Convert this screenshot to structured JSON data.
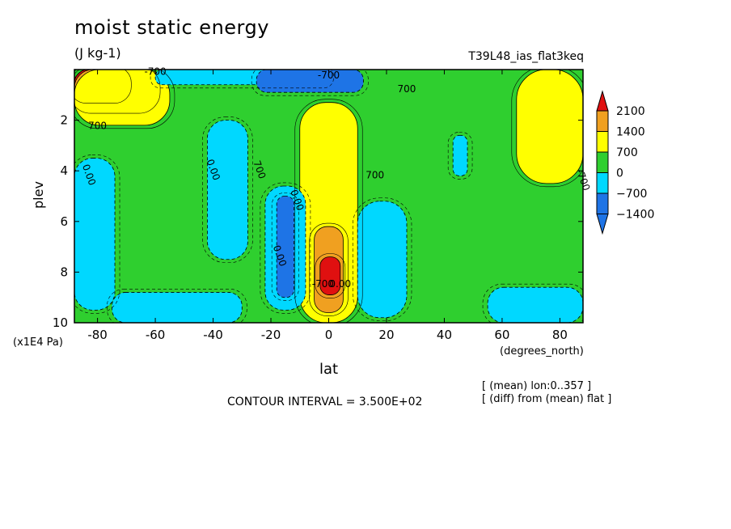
{
  "title": "moist static energy",
  "units": "(J kg-1)",
  "experiment_label": "T39L48_ias_flat3keq",
  "axis": {
    "xlabel": "lat",
    "xunits": "(degrees_north)",
    "ylabel": "plev",
    "yunits": "(x1E4 Pa)"
  },
  "contour_interval_text": "CONTOUR INTERVAL = 3.500E+02",
  "notes": [
    "[ (mean) lon:0..357 ]",
    "[ (diff) from (mean) flat ]"
  ],
  "colors": {
    "c_neg1400": "#1e74e6",
    "c_neg700": "#00d8ff",
    "c_0": "#2fcf2f",
    "c_700": "#ffff00",
    "c_1400": "#f0a020",
    "c_2100": "#e01010"
  },
  "chart_data": {
    "type": "heatmap",
    "subtype": "filled contour (latitude-pressure cross-section)",
    "title": "moist static energy",
    "units": "J kg-1",
    "x": {
      "label": "lat",
      "units": "degrees_north",
      "range": [
        -88,
        88
      ],
      "ticks": [
        -80,
        -60,
        -40,
        -20,
        0,
        20,
        40,
        60,
        80
      ]
    },
    "y": {
      "label": "plev",
      "units": "x1E4 Pa",
      "range": [
        0,
        10
      ],
      "inverted": true,
      "ticks": [
        2,
        4,
        6,
        8,
        10
      ]
    },
    "contour_interval": 350,
    "colorbar": {
      "levels": [
        -1400,
        -700,
        0,
        700,
        1400,
        2100
      ],
      "colors": [
        "#1e74e6",
        "#00d8ff",
        "#2fcf2f",
        "#ffff00",
        "#f0a020",
        "#e01010"
      ],
      "extend": "both"
    },
    "contour_labels": [
      "700",
      "-700",
      "0.00",
      "0.00",
      "700",
      "0.00",
      "0.00",
      "-700",
      "-700",
      "700",
      "700",
      "-700",
      "0.00"
    ],
    "background_level": 0,
    "regions": [
      {
        "level": 2100,
        "lat": [
          -88,
          -70
        ],
        "plev": [
          0,
          1.2
        ],
        "note": "polar stratosphere maximum"
      },
      {
        "level": 1400,
        "lat": [
          -88,
          -60
        ],
        "plev": [
          0,
          1.6
        ]
      },
      {
        "level": 700,
        "lat": [
          -88,
          -55
        ],
        "plev": [
          0,
          2.2
        ]
      },
      {
        "level": -700,
        "lat": [
          -60,
          0
        ],
        "plev": [
          0,
          0.6
        ],
        "note": "upper-level negative band"
      },
      {
        "level": -1400,
        "lat": [
          -25,
          12
        ],
        "plev": [
          0,
          0.9
        ]
      },
      {
        "level": 700,
        "lat": [
          -10,
          10
        ],
        "plev": [
          1.3,
          10
        ],
        "note": "equatorial column"
      },
      {
        "level": 1400,
        "lat": [
          -5,
          5
        ],
        "plev": [
          6.2,
          9.6
        ]
      },
      {
        "level": 2100,
        "lat": [
          -3,
          4
        ],
        "plev": [
          7.4,
          8.9
        ]
      },
      {
        "level": -700,
        "lat": [
          -42,
          -28
        ],
        "plev": [
          2.0,
          7.5
        ]
      },
      {
        "level": -700,
        "lat": [
          -22,
          -8
        ],
        "plev": [
          4.6,
          9.5
        ]
      },
      {
        "level": -1400,
        "lat": [
          -18,
          -12
        ],
        "plev": [
          5.0,
          9.0
        ]
      },
      {
        "level": -700,
        "lat": [
          10,
          27
        ],
        "plev": [
          5.2,
          9.8
        ]
      },
      {
        "level": -700,
        "lat": [
          43,
          48
        ],
        "plev": [
          2.6,
          4.2
        ]
      },
      {
        "level": 700,
        "lat": [
          65,
          88
        ],
        "plev": [
          0,
          4.5
        ]
      },
      {
        "level": -700,
        "lat": [
          -88,
          -74
        ],
        "plev": [
          3.5,
          9.5
        ]
      },
      {
        "level": -700,
        "lat": [
          -75,
          -30
        ],
        "plev": [
          8.8,
          10
        ]
      },
      {
        "level": -700,
        "lat": [
          55,
          88
        ],
        "plev": [
          8.6,
          10
        ]
      }
    ]
  }
}
